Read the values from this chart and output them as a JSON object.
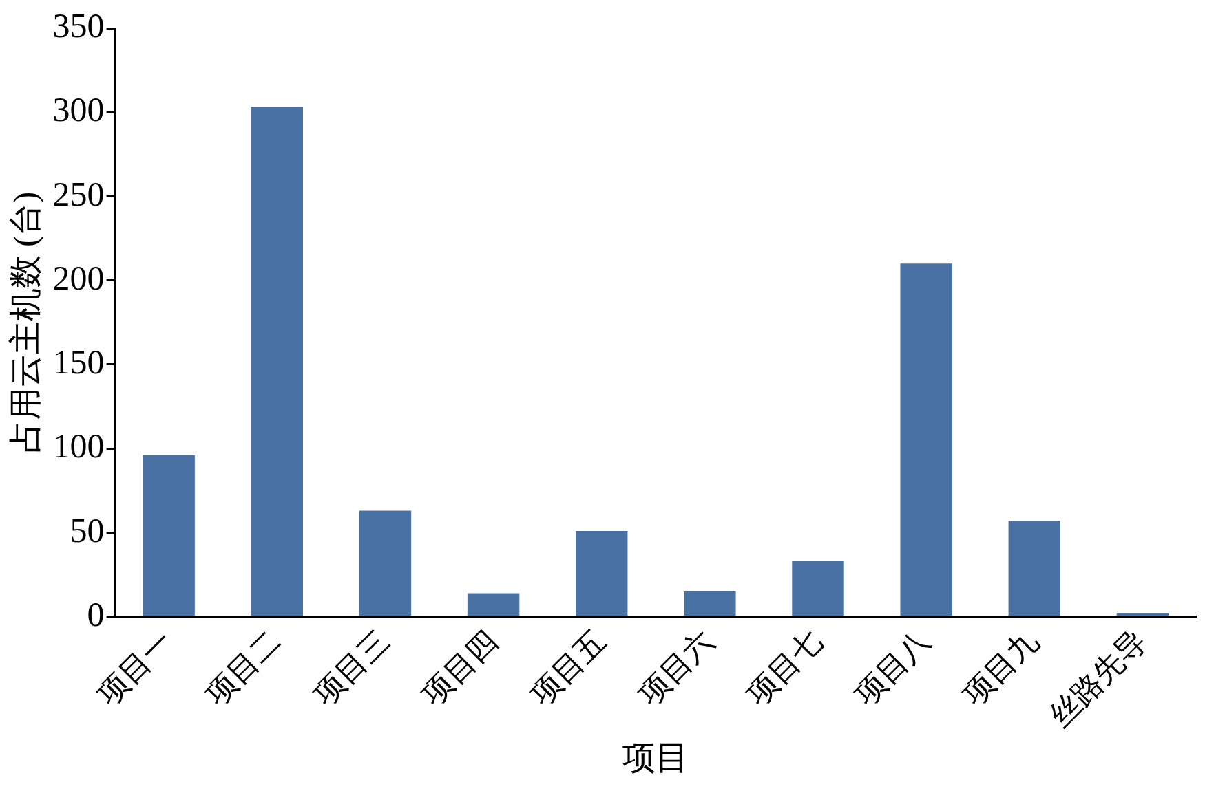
{
  "chart_data": {
    "type": "bar",
    "xlabel": "项目",
    "ylabel": "占用云主机数 (台)",
    "categories": [
      "项目一",
      "项目二",
      "项目三",
      "项目四",
      "项目五",
      "项目六",
      "项目七",
      "项目八",
      "项目九",
      "丝路先导"
    ],
    "values": [
      96,
      303,
      63,
      14,
      51,
      15,
      33,
      210,
      57,
      2
    ],
    "color": "#4a71a3",
    "ylim": [
      0,
      350
    ],
    "yticks": [
      0,
      50,
      100,
      150,
      200,
      250,
      300,
      350
    ],
    "grid": false,
    "legend": false
  }
}
